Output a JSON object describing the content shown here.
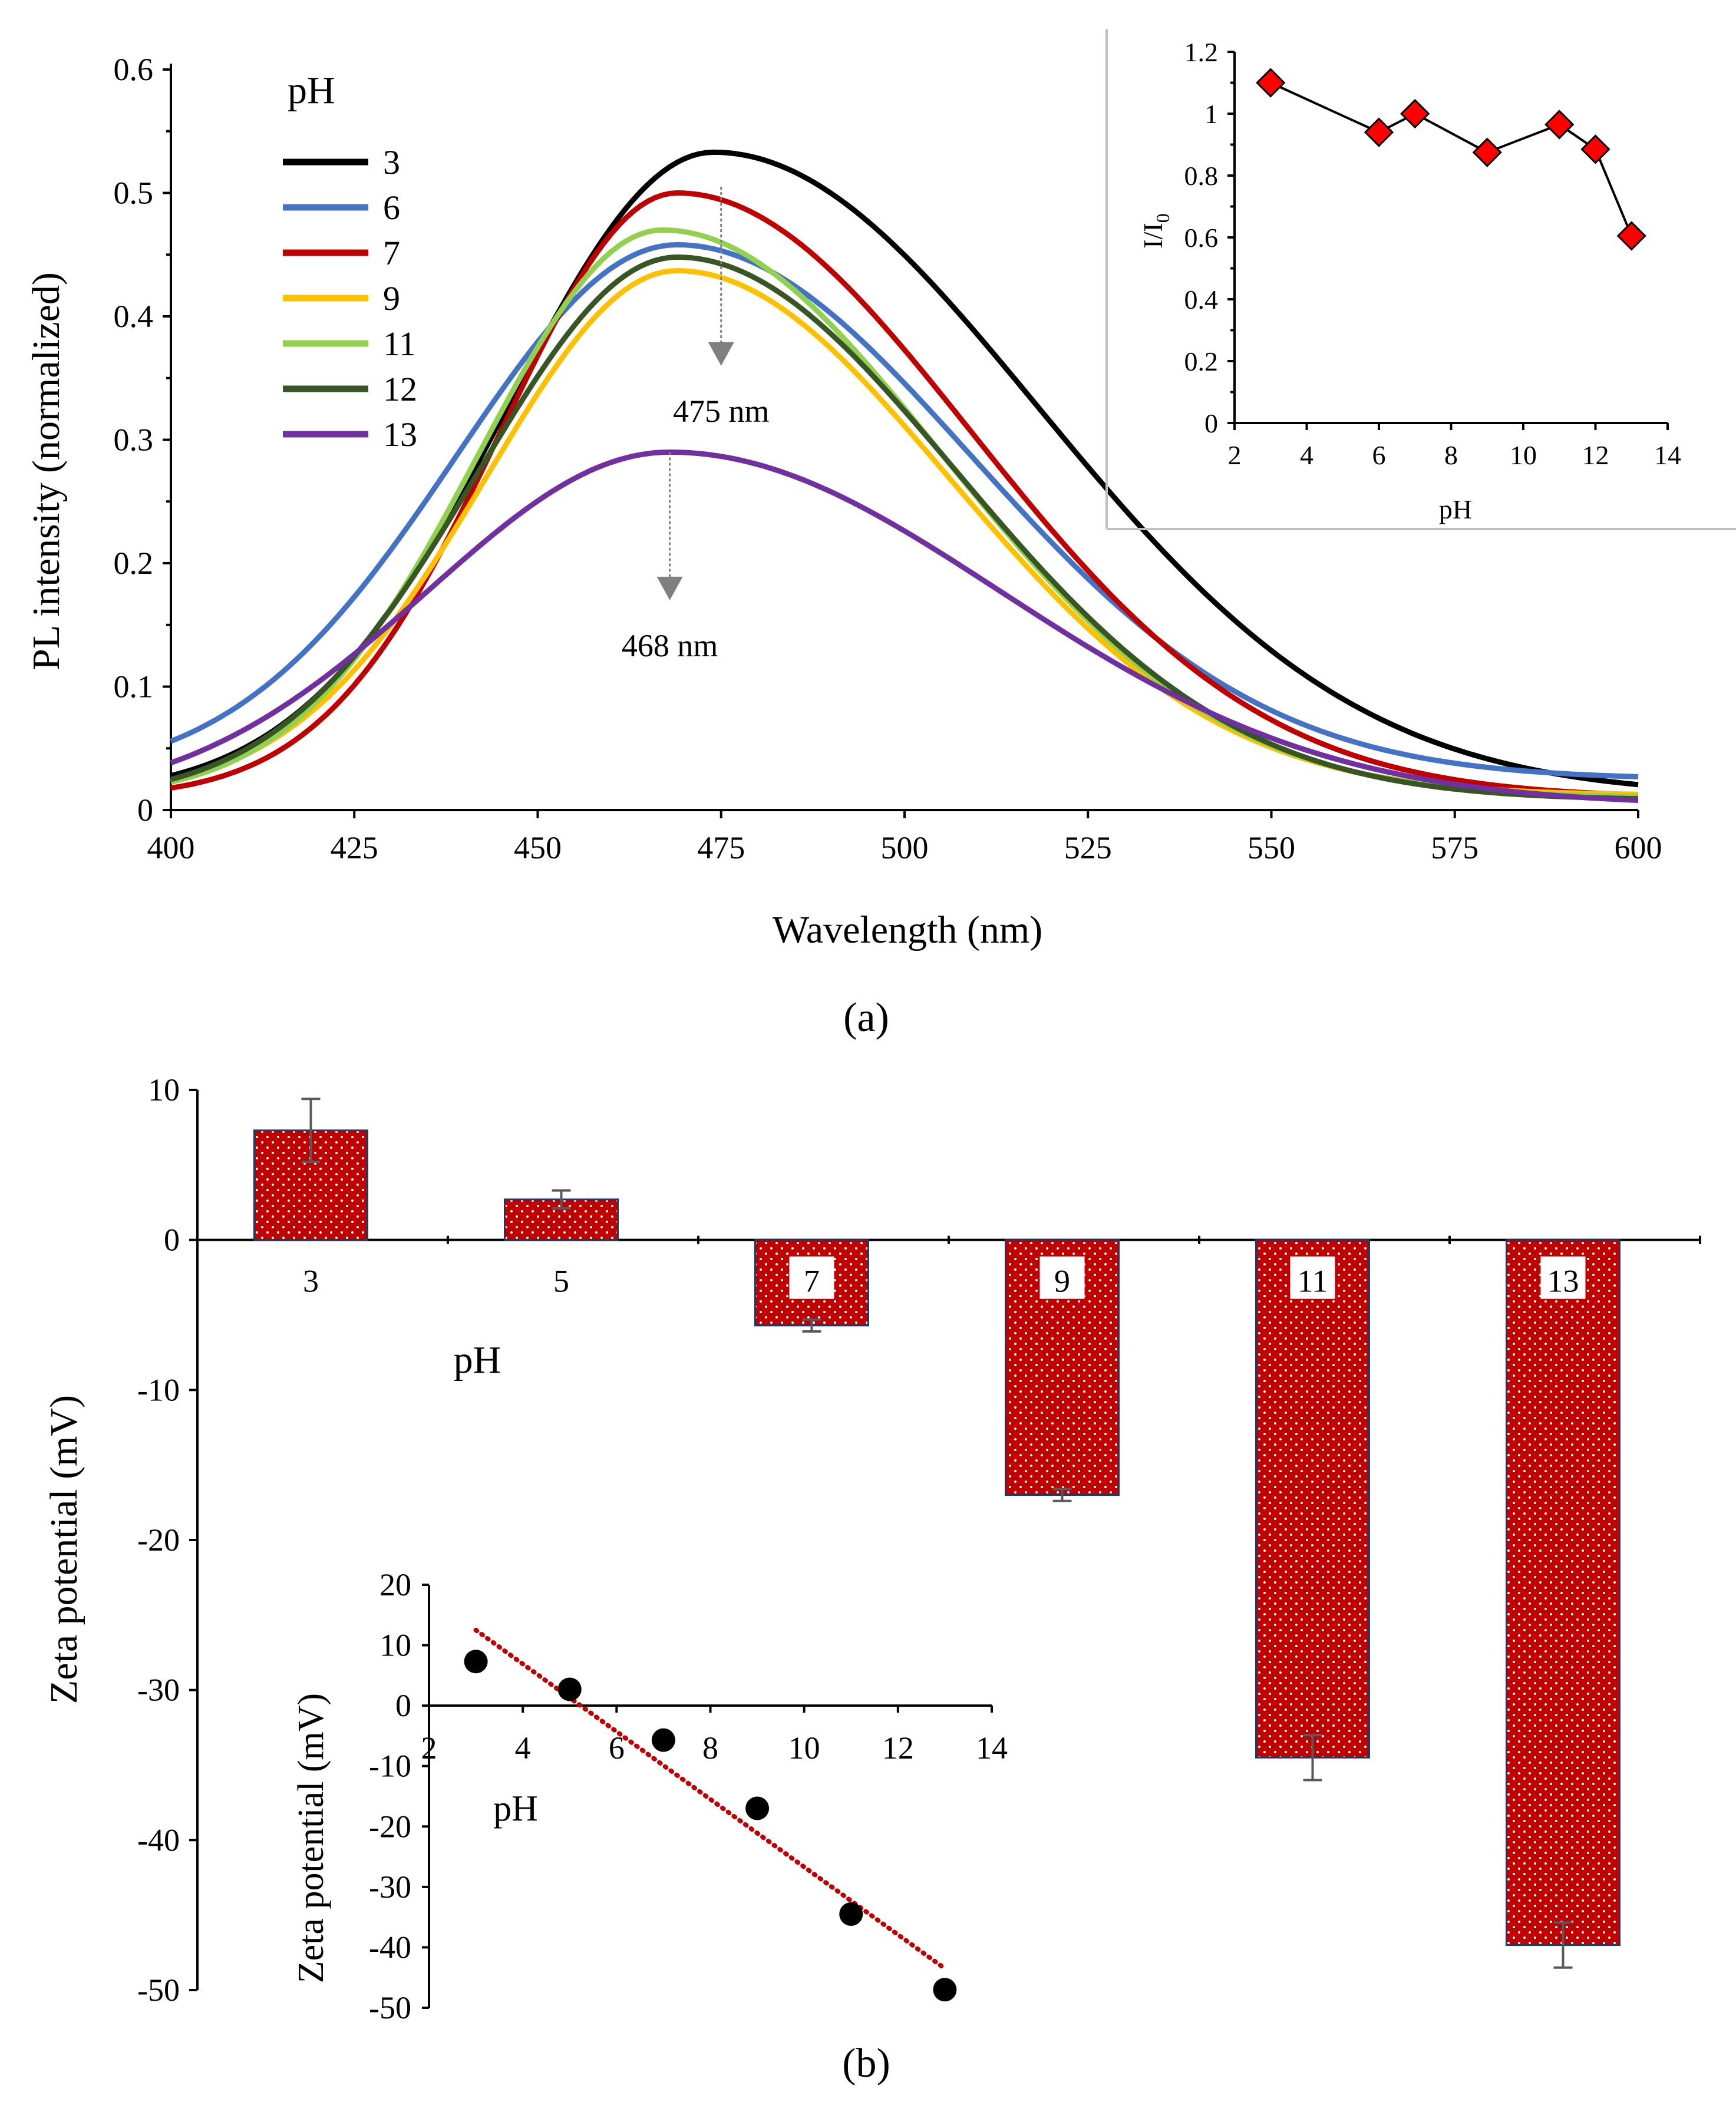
{
  "chart_data": [
    {
      "id": "a",
      "type": "line",
      "caption": "(a)",
      "xlabel": "Wavelength (nm)",
      "ylabel": "PL intensity (normalized)",
      "xlim": [
        400,
        600
      ],
      "ylim": [
        0,
        0.6
      ],
      "xticks": [
        400,
        425,
        450,
        475,
        500,
        525,
        550,
        575,
        600
      ],
      "yticks": [
        0,
        0.1,
        0.2,
        0.3,
        0.4,
        0.5,
        0.6
      ],
      "legend_title": "pH",
      "series": [
        {
          "name": "3",
          "color": "#000000",
          "peak": 0.533,
          "center": 474,
          "wl": 28,
          "wr": 44,
          "base": 0.012
        },
        {
          "name": "6",
          "color": "#4472C4",
          "peak": 0.458,
          "center": 469,
          "wl": 30,
          "wr": 40,
          "base": 0.025
        },
        {
          "name": "7",
          "color": "#C00000",
          "peak": 0.5,
          "center": 469,
          "wl": 24,
          "wr": 40,
          "base": 0.01
        },
        {
          "name": "9",
          "color": "#FFC000",
          "peak": 0.437,
          "center": 469,
          "wl": 26,
          "wr": 37,
          "base": 0.012
        },
        {
          "name": "11",
          "color": "#92D050",
          "peak": 0.47,
          "center": 467,
          "wl": 25,
          "wr": 38,
          "base": 0.01
        },
        {
          "name": "12",
          "color": "#375623",
          "peak": 0.448,
          "center": 469,
          "wl": 27,
          "wr": 38,
          "base": 0.008
        },
        {
          "name": "13",
          "color": "#7030A0",
          "peak": 0.29,
          "center": 468,
          "wl": 33,
          "wr": 45,
          "base": 0.004
        }
      ],
      "annotations": [
        {
          "text": "475 nm",
          "x": 475,
          "y_from": 0.505,
          "y_to": 0.36
        },
        {
          "text": "468 nm",
          "x": 468,
          "y_from": 0.29,
          "y_to": 0.17
        }
      ],
      "inset": {
        "type": "line",
        "xlabel": "pH",
        "ylabel": "I/I",
        "ylabel_sub": "0",
        "xlim": [
          2,
          14
        ],
        "ylim": [
          0,
          1.2
        ],
        "xticks": [
          2,
          4,
          6,
          8,
          10,
          12,
          14
        ],
        "yticks": [
          0,
          0.2,
          0.4,
          0.6,
          0.8,
          1,
          1.2
        ],
        "x": [
          3,
          6,
          7,
          9,
          11,
          12,
          13
        ],
        "y": [
          1.1,
          0.94,
          1.0,
          0.875,
          0.965,
          0.885,
          0.605
        ],
        "marker_color": "#FF0000"
      }
    },
    {
      "id": "b",
      "type": "bar",
      "caption": "(b)",
      "xlabel": "pH",
      "ylabel": "Zeta potential (mV)",
      "ylim": [
        -50,
        10
      ],
      "yticks": [
        -50,
        -40,
        -30,
        -20,
        -10,
        0,
        10
      ],
      "categories": [
        "3",
        "5",
        "7",
        "9",
        "11",
        "13"
      ],
      "values": [
        7.3,
        2.7,
        -5.7,
        -17.0,
        -34.5,
        -47.0
      ],
      "errors": [
        2.1,
        0.6,
        0.4,
        0.4,
        1.5,
        1.5
      ],
      "bar_color": "#C00000",
      "inset": {
        "type": "scatter",
        "xlabel": "pH",
        "ylabel": "Zeta potential (mV)",
        "xlim": [
          2,
          14
        ],
        "ylim": [
          -50,
          20
        ],
        "xticks": [
          2,
          4,
          6,
          8,
          10,
          12,
          14
        ],
        "yticks": [
          -50,
          -40,
          -30,
          -20,
          -10,
          0,
          10,
          20
        ],
        "x": [
          3,
          5,
          7,
          9,
          11,
          13
        ],
        "y": [
          7.3,
          2.7,
          -5.7,
          -17.0,
          -34.5,
          -47.0
        ],
        "trend": {
          "x": [
            3,
            13
          ],
          "y": [
            12.5,
            -43.5
          ],
          "color": "#C00000"
        }
      }
    }
  ]
}
